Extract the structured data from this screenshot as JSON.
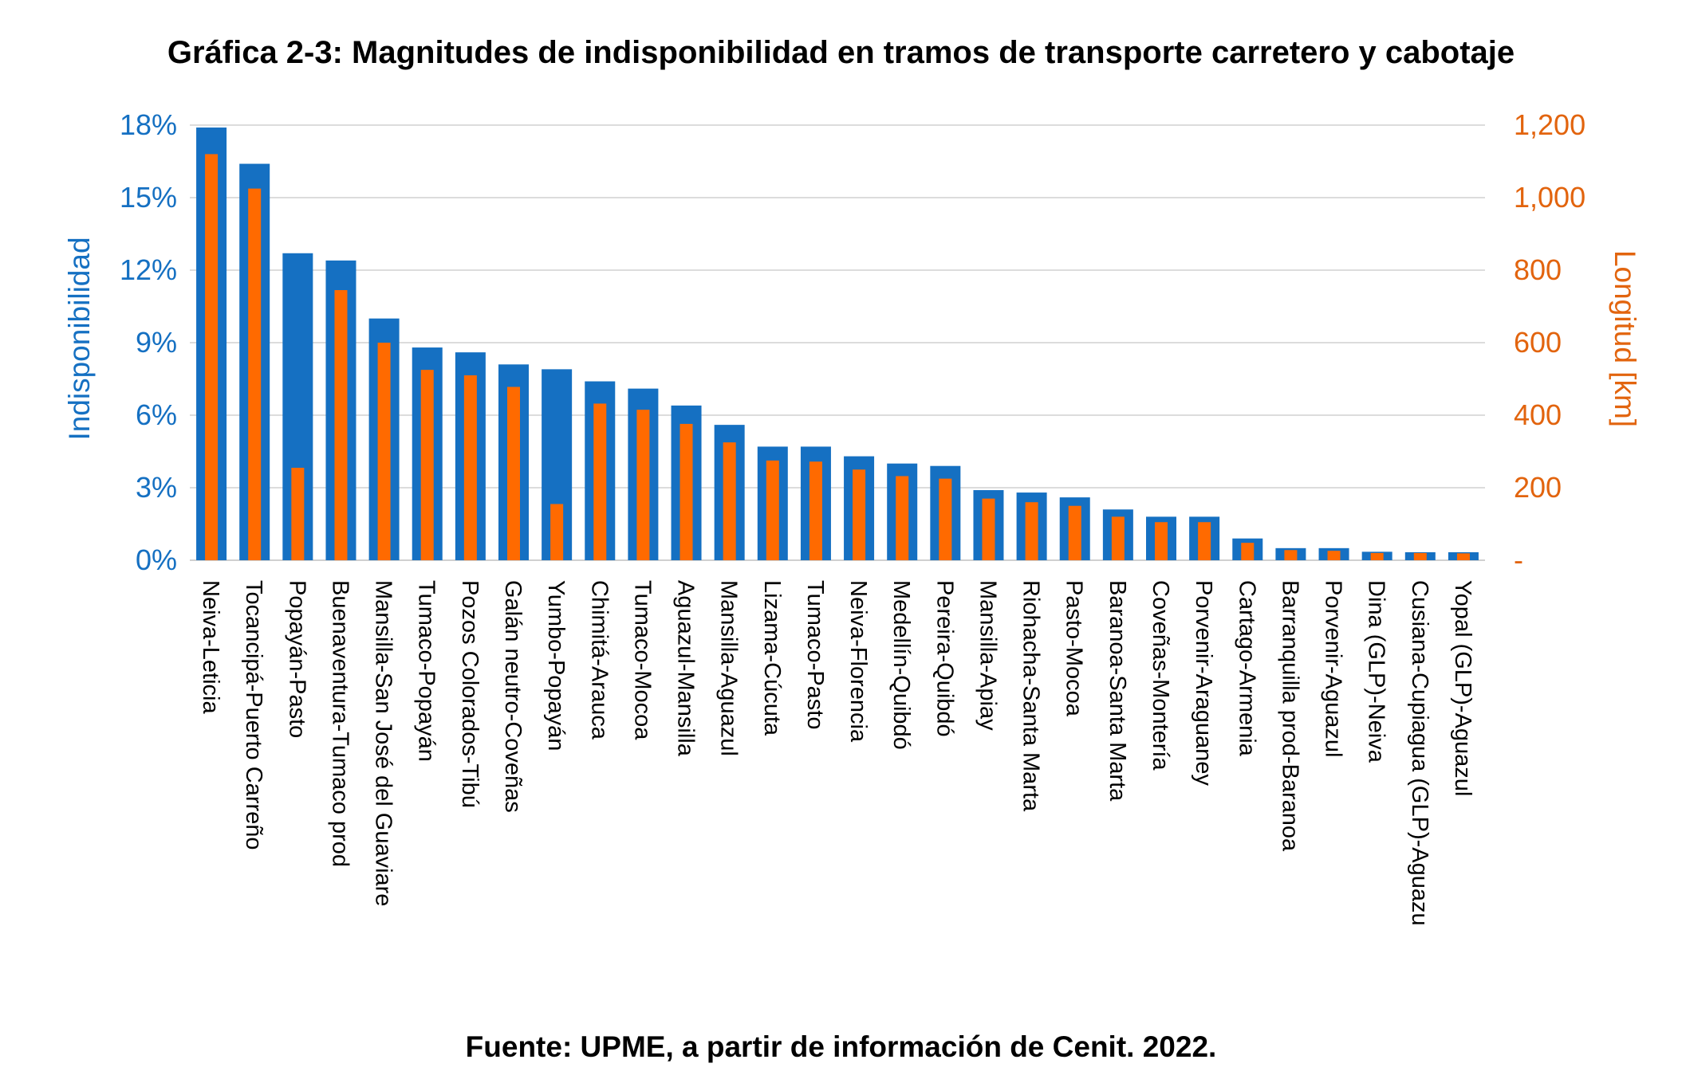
{
  "title": "Gráfica 2-3: Magnitudes de indisponibilidad en tramos de transporte carretero y cabotaje",
  "source": "Fuente: UPME, a partir de información de Cenit. 2022.",
  "colors": {
    "unavailability": "#1570c2",
    "length": "#ff6a00",
    "grid": "#d0d0d0"
  },
  "chart_data": {
    "type": "bar",
    "ylabel": "Indisponibilidad",
    "y2label": "Longitud  [km]",
    "ylim": [
      0,
      18
    ],
    "y2lim": [
      0,
      1200
    ],
    "yticks": [
      "0%",
      "3%",
      "6%",
      "9%",
      "12%",
      "15%",
      "18%"
    ],
    "y2ticks": [
      "-",
      "200",
      "400",
      "600",
      "800",
      "1,000",
      "1,200"
    ],
    "grid": true,
    "legend": "none",
    "categories": [
      "Neiva-Leticia",
      "Tocancipá-Puerto Carreño",
      "Popayán-Pasto",
      "Buenaventura-Tumaco prod",
      "Mansilla-San José del Guaviare",
      "Tumaco-Popayán",
      "Pozos Colorados-Tibú",
      "Galán neutro-Coveñas",
      "Yumbo-Popayán",
      "Chimitá-Arauca",
      "Tumaco-Mocoa",
      "Aguazul-Mansilla",
      "Mansilla-Aguazul",
      "Lizama-Cúcuta",
      "Tumaco-Pasto",
      "Neiva-Florencia",
      "Medellín-Quibdó",
      "Pereira-Quibdó",
      "Mansilla-Apiay",
      "Riohacha-Santa Marta",
      "Pasto-Mocoa",
      "Baranoa-Santa Marta",
      "Coveñas-Montería",
      "Porvenir-Araguaney",
      "Cartago-Armenia",
      "Barranquilla prod-Baranoa",
      "Porvenir-Aguazul",
      "Dina  (GLP)-Neiva",
      "Cusiana-Cupiagua  (GLP)-Aguazu",
      "Yopal  (GLP)-Aguazul"
    ],
    "series": [
      {
        "axis": "left",
        "unit": "%",
        "values": [
          17.9,
          16.4,
          12.7,
          12.4,
          10.0,
          8.8,
          8.6,
          8.1,
          7.9,
          7.4,
          7.1,
          6.4,
          5.6,
          4.7,
          4.7,
          4.3,
          4.0,
          3.9,
          2.9,
          2.8,
          2.6,
          2.1,
          1.8,
          1.8,
          0.9,
          0.5,
          0.5,
          0.35,
          0.33,
          0.33
        ]
      },
      {
        "axis": "right",
        "unit": "km",
        "values": [
          1120,
          1025,
          255,
          745,
          600,
          525,
          510,
          478,
          155,
          432,
          415,
          376,
          325,
          275,
          272,
          250,
          232,
          225,
          170,
          160,
          150,
          120,
          105,
          105,
          48,
          28,
          26,
          20,
          20,
          19
        ]
      }
    ]
  }
}
